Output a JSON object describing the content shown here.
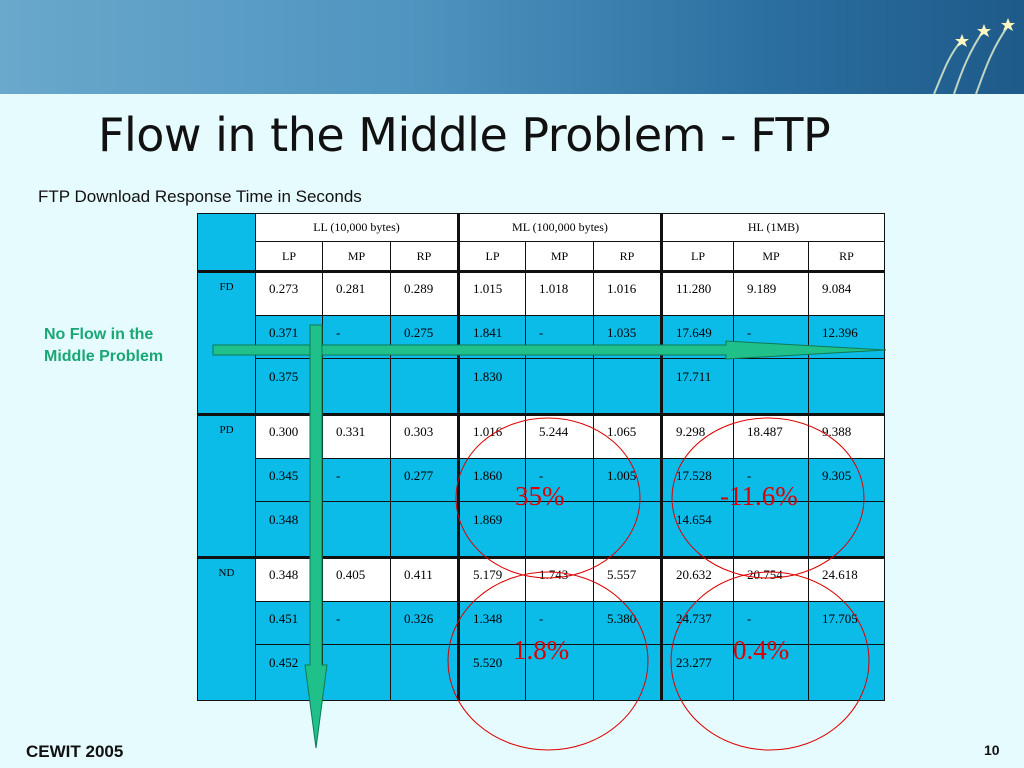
{
  "slide": {
    "title": "Flow in the Middle Problem - FTP",
    "subtitle": "FTP Download Response Time in Seconds",
    "side_label_line1": "No Flow in the",
    "side_label_line2": "Middle Problem",
    "footer_left": "CEWIT 2005",
    "page_number": "10"
  },
  "table": {
    "groups": [
      "LL (10,000 bytes)",
      "ML (100,000 bytes)",
      "HL (1MB)"
    ],
    "subheaders": [
      "LP",
      "MP",
      "RP",
      "LP",
      "MP",
      "RP",
      "LP",
      "MP",
      "RP"
    ],
    "sections": [
      {
        "label": "FD",
        "rows": [
          [
            "0.273",
            "0.281",
            "0.289",
            "1.015",
            "1.018",
            "1.016",
            "11.280",
            "9.189",
            "9.084"
          ],
          [
            "0.371",
            "-",
            "0.275",
            "1.841",
            "-",
            "1.035",
            "17.649",
            "-",
            "12.396"
          ],
          [
            "0.375",
            "",
            "",
            "1.830",
            "",
            "",
            "17.711",
            "",
            ""
          ]
        ]
      },
      {
        "label": "PD",
        "rows": [
          [
            "0.300",
            "0.331",
            "0.303",
            "1.016",
            "5.244",
            "1.065",
            "9.298",
            "18.487",
            "9.388"
          ],
          [
            "0.345",
            "-",
            "0.277",
            "1.860",
            "-",
            "1.005",
            "17.528",
            "-",
            "9.305"
          ],
          [
            "0.348",
            "",
            "",
            "1.869",
            "",
            "",
            "14.654",
            "",
            ""
          ]
        ]
      },
      {
        "label": "ND",
        "rows": [
          [
            "0.348",
            "0.405",
            "0.411",
            "5.179",
            "1.743",
            "5.557",
            "20.632",
            "20.754",
            "24.618"
          ],
          [
            "0.451",
            "-",
            "0.326",
            "1.348",
            "-",
            "5.380",
            "24.737",
            "-",
            "17.705"
          ],
          [
            "0.452",
            "",
            "",
            "5.520",
            "",
            "",
            "23.277",
            "",
            ""
          ]
        ]
      }
    ]
  },
  "annotations": {
    "pct_pd_ml": "35%",
    "pct_pd_hl": "-11.6%",
    "pct_nd_ml": "1.8%",
    "pct_nd_hl": "0.4%",
    "color": "#dd0000"
  },
  "colors": {
    "background": "#e6fbfd",
    "cell_blue": "#0bbbe8",
    "arrow_green": "#1fc08a",
    "label_green": "#1aa774"
  }
}
